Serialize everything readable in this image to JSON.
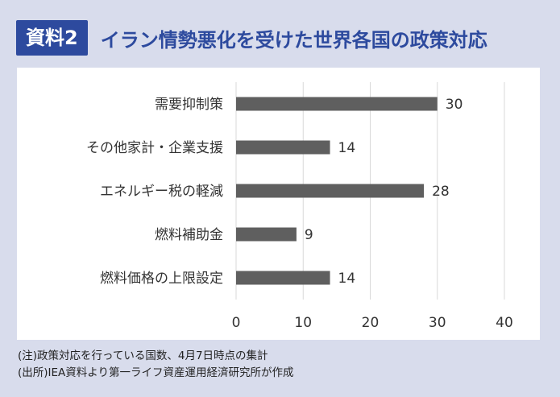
{
  "header": {
    "badge": "資料2",
    "title": "イラン情勢悪化を受けた世界各国の政策対応"
  },
  "footer": {
    "note1": "(注)政策対応を行っている国数、4月7日時点の集計",
    "note2": "(出所)IEA資料より第一ライフ資産運用経済研究所が作成"
  },
  "colors": {
    "bar": "#5f5f5f",
    "accent": "#2d4a9e",
    "frame": "#d8dcec",
    "grid": "#d9d9d9"
  },
  "chart_data": {
    "type": "bar",
    "orientation": "horizontal",
    "categories": [
      "需要抑制策",
      "その他家計・企業支援",
      "エネルギー税の軽減",
      "燃料補助金",
      "燃料価格の上限設定"
    ],
    "values": [
      30,
      14,
      28,
      9,
      14
    ],
    "xlim": [
      0,
      40
    ],
    "xticks": [
      0,
      10,
      20,
      30,
      40
    ],
    "grid": true,
    "data_labels": true
  }
}
